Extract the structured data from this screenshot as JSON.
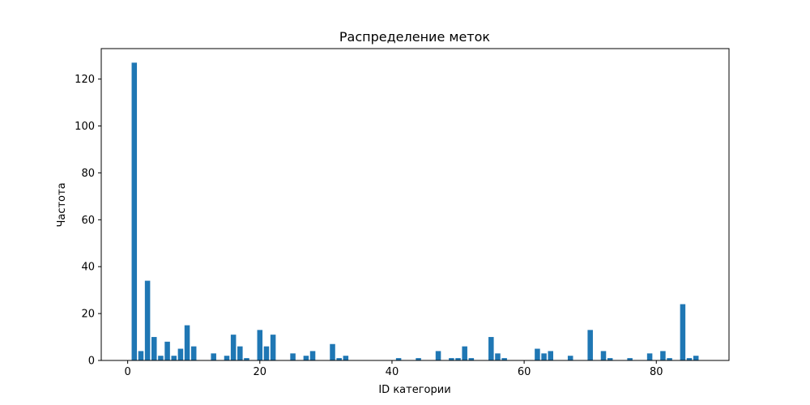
{
  "chart_data": {
    "type": "bar",
    "title": "Распределение меток",
    "xlabel": "ID категории",
    "ylabel": "Частота",
    "xlim": [
      -4,
      91
    ],
    "ylim": [
      0,
      133
    ],
    "xticks": [
      0,
      20,
      40,
      60,
      80
    ],
    "yticks": [
      0,
      20,
      40,
      60,
      80,
      100,
      120
    ],
    "grid": false,
    "bar_color": "#1f77b4",
    "x": [
      1,
      2,
      3,
      4,
      5,
      6,
      7,
      8,
      9,
      10,
      13,
      15,
      16,
      17,
      18,
      20,
      21,
      22,
      25,
      27,
      28,
      31,
      32,
      33,
      41,
      44,
      47,
      49,
      50,
      51,
      52,
      55,
      56,
      57,
      62,
      63,
      64,
      67,
      70,
      72,
      73,
      76,
      79,
      81,
      82,
      84,
      85,
      86
    ],
    "values": [
      127,
      4,
      34,
      10,
      2,
      8,
      2,
      5,
      15,
      6,
      3,
      2,
      11,
      6,
      1,
      13,
      6,
      11,
      3,
      2,
      4,
      7,
      1,
      2,
      1,
      1,
      4,
      1,
      1,
      6,
      1,
      10,
      3,
      1,
      5,
      3,
      4,
      2,
      13,
      4,
      1,
      1,
      3,
      4,
      1,
      24,
      1,
      2
    ]
  }
}
